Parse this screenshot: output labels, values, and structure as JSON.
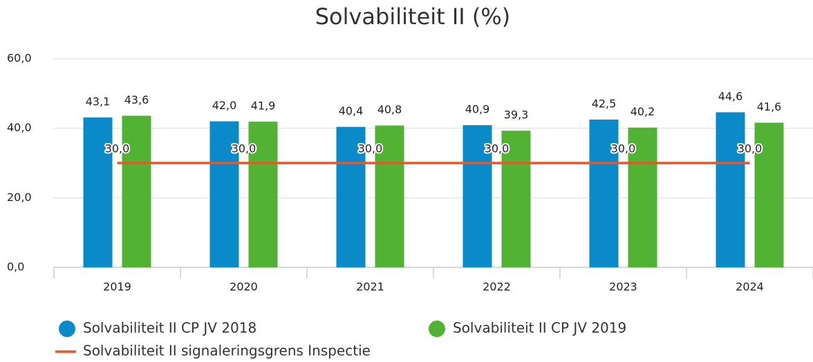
{
  "chart_data": {
    "type": "bar",
    "title": "Solvabiliteit II (%)",
    "categories": [
      "2019",
      "2020",
      "2021",
      "2022",
      "2023",
      "2024"
    ],
    "series": [
      {
        "name": "Solvabiliteit II CP JV 2018",
        "color": "#0a8ac9",
        "values": [
          43.1,
          42.0,
          40.4,
          40.9,
          42.5,
          44.6
        ],
        "value_labels": [
          "43,1",
          "42,0",
          "40,4",
          "40,9",
          "42,5",
          "44,6"
        ]
      },
      {
        "name": "Solvabiliteit II CP JV 2019",
        "color": "#52b233",
        "values": [
          43.6,
          41.9,
          40.8,
          39.3,
          40.2,
          41.6
        ],
        "value_labels": [
          "43,6",
          "41,9",
          "40,8",
          "39,3",
          "40,2",
          "41,6"
        ]
      },
      {
        "name": "Solvabiliteit II signaleringsgrens Inspectie",
        "type": "line",
        "color": "#e8562a",
        "values": [
          30,
          30,
          30,
          30,
          30,
          30
        ],
        "value_labels": [
          "30,0",
          "30,0",
          "30,0",
          "30,0",
          "30,0",
          "30,0"
        ]
      }
    ],
    "ylim": [
      0,
      60
    ],
    "yticks": [
      {
        "value": 0,
        "label": "0,0"
      },
      {
        "value": 20,
        "label": "20,0"
      },
      {
        "value": 40,
        "label": "40,0"
      },
      {
        "value": 60,
        "label": "60,0"
      }
    ],
    "grid": true,
    "legend": "bottom"
  }
}
